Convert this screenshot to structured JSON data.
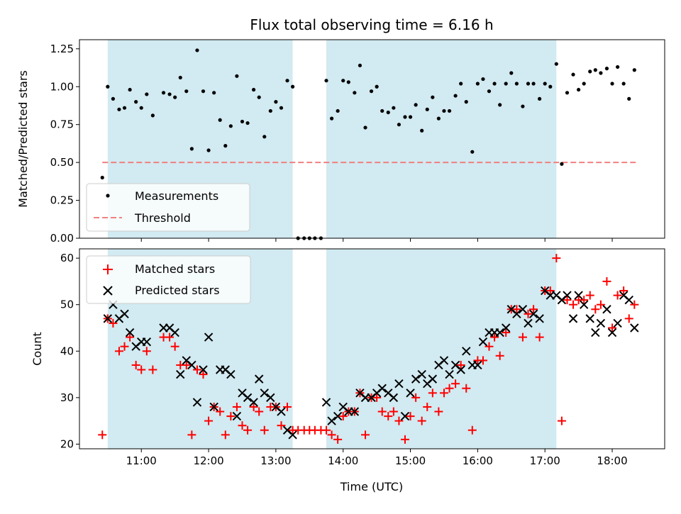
{
  "title": "Flux total observing time = 6.16 h",
  "colors": {
    "span": "#add8e6",
    "threshold": "#f08080",
    "measurements": "#000000",
    "matched": "#ff0000",
    "predicted": "#000000"
  },
  "chart_data": [
    {
      "type": "scatter",
      "panel": "top",
      "xlabel": "",
      "ylabel": "Matched/Predicted stars",
      "xlim": [
        10.08,
        18.78
      ],
      "ylim": [
        0,
        1.31
      ],
      "yticks": [
        0.0,
        0.25,
        0.5,
        0.75,
        1.0,
        1.25
      ],
      "ytick_labels": [
        "0.00",
        "0.25",
        "0.50",
        "0.75",
        "1.00",
        "1.25"
      ],
      "xticks": [
        11,
        12,
        13,
        14,
        15,
        16,
        17,
        18
      ],
      "highlight_spans": [
        [
          10.5,
          13.25
        ],
        [
          13.75,
          17.17
        ]
      ],
      "legend": {
        "position": "lower-left",
        "entries": [
          "Measurements",
          "Threshold"
        ]
      },
      "threshold": {
        "name": "Threshold",
        "x": [
          10.42,
          18.35
        ],
        "y": 0.5
      },
      "series": [
        {
          "name": "Measurements",
          "marker": "dot",
          "x": [
            10.42,
            10.5,
            10.58,
            10.67,
            10.75,
            10.83,
            10.92,
            11.0,
            11.08,
            11.17,
            11.33,
            11.42,
            11.5,
            11.58,
            11.67,
            11.75,
            11.83,
            11.92,
            12.0,
            12.08,
            12.17,
            12.25,
            12.33,
            12.42,
            12.5,
            12.58,
            12.67,
            12.75,
            12.83,
            12.92,
            13.0,
            13.08,
            13.17,
            13.25,
            13.33,
            13.42,
            13.5,
            13.58,
            13.67,
            13.75,
            13.83,
            13.92,
            14.0,
            14.08,
            14.17,
            14.25,
            14.33,
            14.42,
            14.5,
            14.58,
            14.67,
            14.75,
            14.83,
            14.92,
            15.0,
            15.08,
            15.17,
            15.25,
            15.33,
            15.42,
            15.5,
            15.58,
            15.67,
            15.75,
            15.83,
            15.92,
            16.0,
            16.08,
            16.17,
            16.25,
            16.33,
            16.42,
            16.5,
            16.58,
            16.67,
            16.75,
            16.83,
            16.92,
            17.0,
            17.08,
            17.17,
            17.25,
            17.33,
            17.42,
            17.5,
            17.58,
            17.67,
            17.75,
            17.83,
            17.92,
            18.0,
            18.08,
            18.17,
            18.25,
            18.33
          ],
          "y": [
            0.4,
            1.0,
            0.92,
            0.85,
            0.86,
            0.98,
            0.9,
            0.86,
            0.95,
            0.81,
            0.96,
            0.95,
            0.93,
            1.06,
            0.97,
            0.59,
            1.24,
            0.97,
            0.58,
            0.96,
            0.78,
            0.61,
            0.74,
            1.07,
            0.77,
            0.76,
            0.98,
            0.93,
            0.67,
            0.84,
            0.9,
            0.86,
            1.04,
            1.0,
            0.0,
            0.0,
            0.0,
            0.0,
            0.0,
            1.04,
            0.79,
            0.84,
            1.04,
            1.03,
            0.96,
            1.14,
            0.73,
            0.97,
            1.0,
            0.84,
            0.83,
            0.86,
            0.75,
            0.8,
            0.8,
            0.88,
            0.71,
            0.85,
            0.93,
            0.79,
            0.84,
            0.84,
            0.94,
            1.02,
            0.9,
            0.57,
            1.02,
            1.05,
            0.97,
            1.02,
            0.88,
            1.02,
            1.09,
            1.02,
            0.87,
            1.02,
            1.02,
            0.92,
            1.02,
            1.0,
            1.15,
            0.49,
            0.96,
            1.08,
            0.98,
            1.02,
            1.1,
            1.11,
            1.09,
            1.12,
            1.02,
            1.13,
            1.02,
            0.92,
            1.11
          ]
        }
      ]
    },
    {
      "type": "scatter",
      "panel": "bottom",
      "xlabel": "Time (UTC)",
      "ylabel": "Count",
      "xlim": [
        10.08,
        18.78
      ],
      "ylim": [
        19,
        62
      ],
      "yticks": [
        20,
        30,
        40,
        50,
        60
      ],
      "ytick_labels": [
        "20",
        "30",
        "40",
        "50",
        "60"
      ],
      "xticks": [
        11,
        12,
        13,
        14,
        15,
        16,
        17,
        18
      ],
      "xtick_labels": [
        "11:00",
        "12:00",
        "13:00",
        "14:00",
        "15:00",
        "16:00",
        "17:00",
        "18:00"
      ],
      "highlight_spans": [
        [
          10.5,
          13.25
        ],
        [
          13.75,
          17.17
        ]
      ],
      "legend": {
        "position": "upper-left",
        "entries": [
          "Matched stars",
          "Predicted stars"
        ]
      },
      "series": [
        {
          "name": "Matched stars",
          "marker": "plus",
          "x": [
            10.42,
            10.5,
            10.58,
            10.67,
            10.75,
            10.83,
            10.92,
            11.0,
            11.08,
            11.17,
            11.33,
            11.42,
            11.5,
            11.58,
            11.67,
            11.75,
            11.83,
            11.92,
            12.0,
            12.08,
            12.17,
            12.25,
            12.33,
            12.42,
            12.5,
            12.58,
            12.67,
            12.75,
            12.83,
            12.92,
            13.0,
            13.08,
            13.17,
            13.25,
            13.33,
            13.42,
            13.5,
            13.58,
            13.67,
            13.75,
            13.83,
            13.92,
            14.0,
            14.08,
            14.17,
            14.25,
            14.33,
            14.42,
            14.5,
            14.58,
            14.67,
            14.75,
            14.83,
            14.92,
            15.0,
            15.08,
            15.17,
            15.25,
            15.33,
            15.42,
            15.5,
            15.58,
            15.67,
            15.75,
            15.83,
            15.92,
            16.0,
            16.08,
            16.17,
            16.25,
            16.33,
            16.42,
            16.5,
            16.58,
            16.67,
            16.75,
            16.83,
            16.92,
            17.0,
            17.08,
            17.17,
            17.25,
            17.33,
            17.42,
            17.5,
            17.58,
            17.67,
            17.75,
            17.83,
            17.92,
            18.0,
            18.08,
            18.17,
            18.25,
            18.33
          ],
          "y": [
            22,
            47,
            46,
            40,
            41,
            43,
            37,
            36,
            40,
            36,
            43,
            43,
            41,
            37,
            37,
            22,
            36,
            35,
            25,
            28,
            27,
            22,
            26,
            28,
            24,
            23,
            28,
            27,
            23,
            28,
            28,
            24,
            28,
            23,
            23,
            23,
            23,
            23,
            23,
            23,
            22,
            21,
            26,
            27,
            27,
            31,
            22,
            30,
            30,
            27,
            26,
            27,
            25,
            21,
            26,
            30,
            25,
            28,
            31,
            27,
            31,
            32,
            33,
            37,
            32,
            23,
            38,
            38,
            41,
            43,
            39,
            44,
            49,
            49,
            43,
            48,
            49,
            43,
            53,
            53,
            60,
            25,
            51,
            50,
            51,
            51,
            52,
            49,
            50,
            55,
            45,
            52,
            53,
            47,
            50
          ]
        },
        {
          "name": "Predicted stars",
          "marker": "x",
          "x": [
            10.5,
            10.58,
            10.67,
            10.75,
            10.83,
            10.92,
            11.0,
            11.08,
            11.33,
            11.42,
            11.5,
            11.58,
            11.67,
            11.75,
            11.83,
            11.92,
            12.0,
            12.08,
            12.17,
            12.25,
            12.33,
            12.42,
            12.5,
            12.58,
            12.67,
            12.75,
            12.83,
            12.92,
            13.0,
            13.08,
            13.17,
            13.25,
            13.75,
            13.83,
            13.92,
            14.0,
            14.08,
            14.17,
            14.25,
            14.33,
            14.42,
            14.5,
            14.58,
            14.67,
            14.75,
            14.83,
            14.92,
            15.0,
            15.08,
            15.17,
            15.25,
            15.33,
            15.42,
            15.5,
            15.58,
            15.67,
            15.75,
            15.83,
            15.92,
            16.0,
            16.08,
            16.17,
            16.25,
            16.33,
            16.42,
            16.5,
            16.58,
            16.67,
            16.75,
            16.83,
            16.92,
            17.0,
            17.08,
            17.17,
            17.25,
            17.33,
            17.42,
            17.5,
            17.58,
            17.67,
            17.75,
            17.83,
            17.92,
            18.0,
            18.08,
            18.17,
            18.25,
            18.33
          ],
          "y": [
            47,
            50,
            47,
            48,
            44,
            41,
            42,
            42,
            45,
            45,
            44,
            35,
            38,
            37,
            29,
            36,
            43,
            28,
            36,
            36,
            35,
            26,
            31,
            30,
            29,
            34,
            31,
            30,
            28,
            27,
            23,
            22,
            29,
            25,
            26,
            28,
            27,
            27,
            31,
            30,
            30,
            31,
            32,
            31,
            30,
            33,
            26,
            31,
            34,
            35,
            33,
            34,
            37,
            38,
            35,
            37,
            36,
            40,
            37,
            37,
            42,
            44,
            44,
            44,
            45,
            49,
            48,
            49,
            46,
            48,
            47,
            53,
            52,
            52,
            51,
            52,
            47,
            52,
            50,
            47,
            44,
            46,
            49,
            44,
            46,
            52,
            51,
            45
          ]
        }
      ]
    }
  ]
}
